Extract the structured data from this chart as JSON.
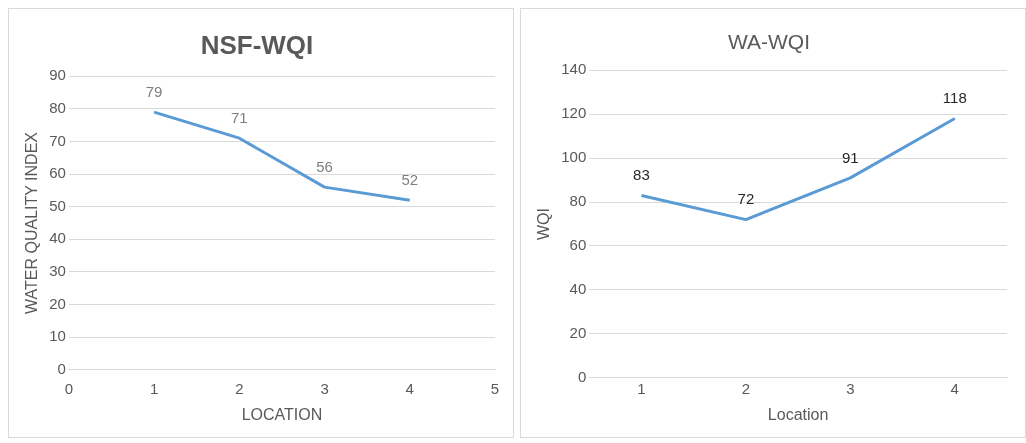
{
  "chart_data": [
    {
      "type": "line",
      "title": "NSF-WQI",
      "xlabel": "LOCATION",
      "ylabel": "WATER QUALITY INDEX",
      "x": [
        1,
        2,
        3,
        4
      ],
      "series": [
        {
          "color": "#5b9bd5",
          "values": [
            79,
            71,
            56,
            52
          ]
        }
      ],
      "xlim": [
        0,
        5
      ],
      "xticks": [
        0,
        1,
        2,
        3,
        4,
        5
      ],
      "ylim": [
        0,
        90
      ],
      "yticks": [
        0,
        10,
        20,
        30,
        40,
        50,
        60,
        70,
        80,
        90
      ],
      "grid": "y",
      "legend": false,
      "marker": "none",
      "line_style": "solid",
      "data_labels": true
    },
    {
      "type": "line",
      "title": "WA-WQI",
      "xlabel": "Location",
      "ylabel": "WQI",
      "categories": [
        "1",
        "2",
        "3",
        "4"
      ],
      "series": [
        {
          "color": "#5b9bd5",
          "values": [
            83,
            72,
            91,
            118
          ]
        }
      ],
      "ylim": [
        0,
        140
      ],
      "yticks": [
        0,
        20,
        40,
        60,
        80,
        100,
        120,
        140
      ],
      "grid": "y",
      "legend": false,
      "marker": "none",
      "line_style": "solid",
      "data_labels": true
    }
  ]
}
